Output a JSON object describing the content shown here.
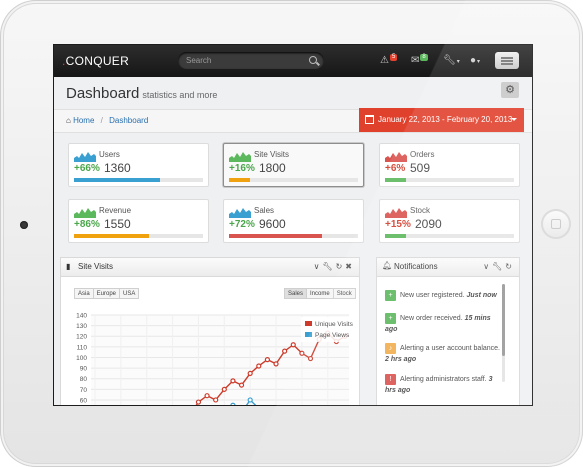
{
  "app": {
    "logo_text": "CONQUER"
  },
  "search": {
    "placeholder": "Search"
  },
  "topbar": {
    "alerts_count": "5",
    "inbox_count": "8",
    "colors": {
      "alerts": "#e5412d",
      "inbox": "#5cb85c"
    }
  },
  "header": {
    "title": "Dashboard",
    "subtitle": "statistics and more"
  },
  "breadcrumb": {
    "home": "Home",
    "current": "Dashboard"
  },
  "daterange": {
    "label": "January 22, 2013 - February 20, 2013"
  },
  "tiles": [
    {
      "label": "Users",
      "pct": "+66%",
      "value": "1360",
      "progress": 0.67,
      "color": "#3aa0d2"
    },
    {
      "label": "Site Visits",
      "pct": "+16%",
      "value": "1800",
      "progress": 0.16,
      "color": "#f0a10e"
    },
    {
      "label": "Orders",
      "pct": "+6%",
      "value": "509",
      "progress": 0.16,
      "color": "#5cb85c"
    },
    {
      "label": "Revenue",
      "pct": "+86%",
      "value": "1550",
      "progress": 0.58,
      "color": "#f0a10e"
    },
    {
      "label": "Sales",
      "pct": "+72%",
      "value": "9600",
      "progress": 0.72,
      "color": "#d9534f"
    },
    {
      "label": "Stock",
      "pct": "+15%",
      "value": "2090",
      "progress": 0.16,
      "color": "#5cb85c"
    }
  ],
  "tile_colors": {
    "green_text": "#4aa64a",
    "red_text": "#d23b2b",
    "spark_blue": "#3aa0d2",
    "spark_green": "#5cb85c",
    "spark_red": "#d9534f"
  },
  "site_visits": {
    "title": "Site Visits",
    "region_tabs": [
      "Asia",
      "Europe",
      "USA"
    ],
    "metric_tabs": [
      "Sales",
      "Income",
      "Stock"
    ]
  },
  "chart_data": {
    "type": "line",
    "title": "",
    "xlabel": "",
    "ylabel": "",
    "ylim": [
      0,
      140
    ],
    "yticks": [
      40,
      50,
      60,
      70,
      80,
      90,
      100,
      110,
      120,
      130,
      140
    ],
    "grid": true,
    "legend": "top-right",
    "x": [
      1,
      2,
      3,
      4,
      5,
      6,
      7,
      8,
      9,
      10,
      11,
      12,
      13,
      14,
      15,
      16,
      17,
      18,
      19,
      20,
      21,
      22,
      23,
      24,
      25,
      26,
      27,
      28,
      29,
      30
    ],
    "series": [
      {
        "name": "Unique Visits",
        "color": "#cc3b2b",
        "values": [
          14,
          18,
          15,
          22,
          26,
          30,
          28,
          33,
          38,
          45,
          52,
          46,
          58,
          64,
          60,
          70,
          78,
          74,
          85,
          92,
          98,
          94,
          106,
          112,
          104,
          99,
          117,
          123,
          115,
          120
        ]
      },
      {
        "name": "Page Views",
        "color": "#3aa0d2",
        "values": [
          10,
          14,
          16,
          20,
          24,
          22,
          18,
          28,
          33,
          38,
          36,
          40,
          30,
          42,
          50,
          46,
          55,
          48,
          60,
          52,
          45,
          38,
          41,
          35,
          37,
          34,
          42,
          40,
          45,
          47
        ]
      }
    ]
  },
  "notifications": {
    "title": "Notifications",
    "items": [
      {
        "text": "New user registered.",
        "time": "Just now",
        "color": "#5cb85c",
        "icon": "plus-icon"
      },
      {
        "text": "New order received.",
        "time": "15 mins ago",
        "color": "#5cb85c",
        "icon": "plus-icon"
      },
      {
        "text": "Alerting a user account balance.",
        "time": "2 hrs ago",
        "color": "#f0ad4e",
        "icon": "bell-icon"
      },
      {
        "text": "Alerting administrators staff.",
        "time": "3 hrs ago",
        "color": "#d9534f",
        "icon": "warning-icon"
      }
    ]
  }
}
